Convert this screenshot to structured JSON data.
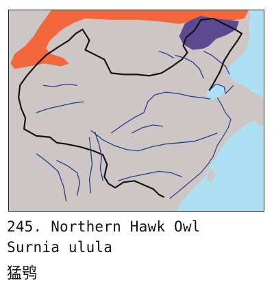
{
  "caption": {
    "number_and_name": "245. Northern Hawk Owl",
    "scientific_name": "Surnia ulula",
    "chinese_name": "猛鸮"
  },
  "colors": {
    "sea": "#aee0f4",
    "land": "#cdc6c4",
    "range_orange": "#f4663c",
    "range_purple": "#5b4a90",
    "border": "#111111",
    "river": "#1f3d8a"
  }
}
